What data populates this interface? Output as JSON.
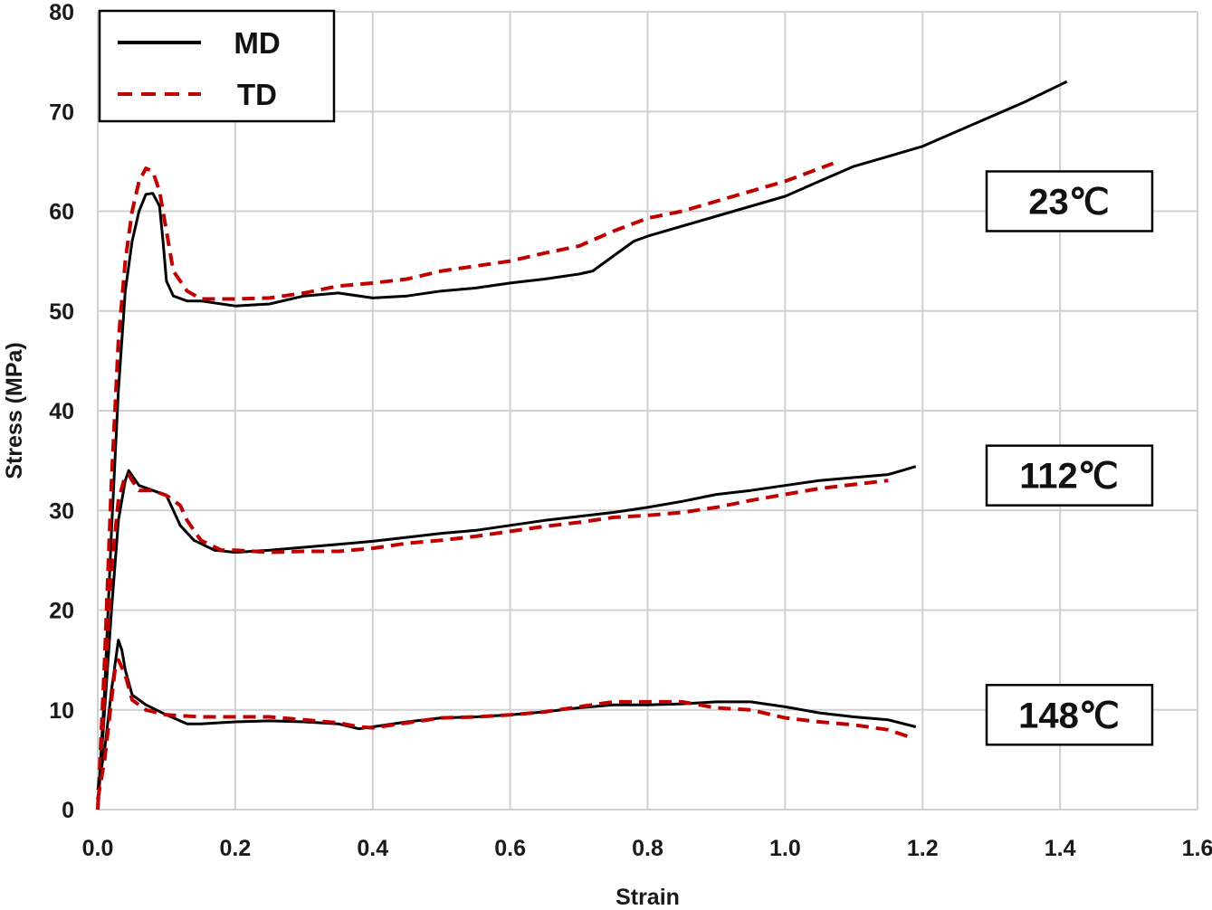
{
  "chart_data": {
    "type": "line",
    "title": "",
    "xlabel": "Strain",
    "ylabel": "Stress (MPa)",
    "xlim": [
      0,
      1.6
    ],
    "ylim": [
      0,
      80
    ],
    "x_ticks": [
      "0.0",
      "0.2",
      "0.4",
      "0.6",
      "0.8",
      "1.0",
      "1.2",
      "1.4",
      "1.6"
    ],
    "y_ticks": [
      "0",
      "10",
      "20",
      "30",
      "40",
      "50",
      "60",
      "70",
      "80"
    ],
    "grid": true,
    "legend": {
      "placement": "top-left",
      "entries": [
        {
          "label": "MD",
          "color": "#000000",
          "style": "solid"
        },
        {
          "label": "TD",
          "color": "#c00000",
          "style": "dashed"
        }
      ]
    },
    "annotations": [
      {
        "text": "23℃",
        "near_y": 61
      },
      {
        "text": "112℃",
        "near_y": 33.5
      },
      {
        "text": "148℃",
        "near_y": 9.5
      }
    ],
    "series": [
      {
        "name": "MD",
        "group": "23℃",
        "color": "#000000",
        "dash": false,
        "points": [
          [
            0.0,
            0
          ],
          [
            0.01,
            12
          ],
          [
            0.02,
            28
          ],
          [
            0.03,
            42
          ],
          [
            0.04,
            52
          ],
          [
            0.05,
            57
          ],
          [
            0.06,
            60
          ],
          [
            0.07,
            61.7
          ],
          [
            0.08,
            61.8
          ],
          [
            0.09,
            60.5
          ],
          [
            0.095,
            57
          ],
          [
            0.1,
            53
          ],
          [
            0.11,
            51.5
          ],
          [
            0.13,
            51
          ],
          [
            0.15,
            51
          ],
          [
            0.2,
            50.5
          ],
          [
            0.25,
            50.7
          ],
          [
            0.3,
            51.5
          ],
          [
            0.35,
            51.8
          ],
          [
            0.4,
            51.3
          ],
          [
            0.45,
            51.5
          ],
          [
            0.5,
            52
          ],
          [
            0.55,
            52.3
          ],
          [
            0.6,
            52.8
          ],
          [
            0.65,
            53.2
          ],
          [
            0.7,
            53.7
          ],
          [
            0.72,
            54
          ],
          [
            0.75,
            55.5
          ],
          [
            0.78,
            57
          ],
          [
            0.8,
            57.5
          ],
          [
            0.85,
            58.5
          ],
          [
            0.9,
            59.5
          ],
          [
            0.95,
            60.5
          ],
          [
            1.0,
            61.5
          ],
          [
            1.05,
            63
          ],
          [
            1.1,
            64.5
          ],
          [
            1.15,
            65.5
          ],
          [
            1.2,
            66.5
          ],
          [
            1.25,
            68
          ],
          [
            1.3,
            69.5
          ],
          [
            1.35,
            71
          ],
          [
            1.41,
            73
          ]
        ]
      },
      {
        "name": "TD",
        "group": "23℃",
        "color": "#c00000",
        "dash": true,
        "points": [
          [
            0.0,
            0
          ],
          [
            0.01,
            15
          ],
          [
            0.02,
            33
          ],
          [
            0.03,
            47
          ],
          [
            0.04,
            55
          ],
          [
            0.05,
            60
          ],
          [
            0.06,
            63
          ],
          [
            0.07,
            64.3
          ],
          [
            0.08,
            64
          ],
          [
            0.09,
            62
          ],
          [
            0.1,
            58
          ],
          [
            0.11,
            54
          ],
          [
            0.13,
            52
          ],
          [
            0.15,
            51.2
          ],
          [
            0.2,
            51.2
          ],
          [
            0.25,
            51.3
          ],
          [
            0.3,
            51.8
          ],
          [
            0.35,
            52.5
          ],
          [
            0.4,
            52.8
          ],
          [
            0.45,
            53.2
          ],
          [
            0.5,
            54
          ],
          [
            0.55,
            54.5
          ],
          [
            0.6,
            55
          ],
          [
            0.65,
            55.8
          ],
          [
            0.7,
            56.5
          ],
          [
            0.75,
            58
          ],
          [
            0.8,
            59.3
          ],
          [
            0.85,
            60
          ],
          [
            0.9,
            61
          ],
          [
            0.95,
            62
          ],
          [
            1.0,
            63
          ],
          [
            1.07,
            64.8
          ]
        ]
      },
      {
        "name": "MD",
        "group": "112℃",
        "color": "#000000",
        "dash": false,
        "points": [
          [
            0.0,
            0
          ],
          [
            0.01,
            10
          ],
          [
            0.02,
            20
          ],
          [
            0.03,
            29
          ],
          [
            0.04,
            33
          ],
          [
            0.045,
            34
          ],
          [
            0.05,
            33.5
          ],
          [
            0.06,
            32.5
          ],
          [
            0.08,
            32
          ],
          [
            0.1,
            31.5
          ],
          [
            0.11,
            30
          ],
          [
            0.12,
            28.5
          ],
          [
            0.14,
            27
          ],
          [
            0.17,
            26
          ],
          [
            0.2,
            25.8
          ],
          [
            0.25,
            26
          ],
          [
            0.3,
            26.3
          ],
          [
            0.35,
            26.6
          ],
          [
            0.4,
            26.9
          ],
          [
            0.45,
            27.3
          ],
          [
            0.5,
            27.7
          ],
          [
            0.55,
            28
          ],
          [
            0.6,
            28.5
          ],
          [
            0.65,
            29
          ],
          [
            0.7,
            29.4
          ],
          [
            0.75,
            29.8
          ],
          [
            0.8,
            30.3
          ],
          [
            0.85,
            30.9
          ],
          [
            0.9,
            31.6
          ],
          [
            0.95,
            32
          ],
          [
            1.0,
            32.5
          ],
          [
            1.05,
            33
          ],
          [
            1.1,
            33.3
          ],
          [
            1.15,
            33.6
          ],
          [
            1.17,
            34
          ],
          [
            1.19,
            34.4
          ]
        ]
      },
      {
        "name": "TD",
        "group": "112℃",
        "color": "#c00000",
        "dash": true,
        "points": [
          [
            0.0,
            0
          ],
          [
            0.01,
            12
          ],
          [
            0.02,
            24
          ],
          [
            0.03,
            31
          ],
          [
            0.04,
            33.5
          ],
          [
            0.045,
            33.6
          ],
          [
            0.05,
            33
          ],
          [
            0.06,
            32
          ],
          [
            0.08,
            32
          ],
          [
            0.1,
            31.5
          ],
          [
            0.12,
            30.5
          ],
          [
            0.13,
            29
          ],
          [
            0.15,
            27
          ],
          [
            0.18,
            26
          ],
          [
            0.2,
            26
          ],
          [
            0.25,
            25.8
          ],
          [
            0.3,
            25.9
          ],
          [
            0.35,
            25.9
          ],
          [
            0.4,
            26.2
          ],
          [
            0.45,
            26.7
          ],
          [
            0.5,
            27
          ],
          [
            0.55,
            27.4
          ],
          [
            0.6,
            27.9
          ],
          [
            0.65,
            28.4
          ],
          [
            0.7,
            28.8
          ],
          [
            0.75,
            29.3
          ],
          [
            0.8,
            29.5
          ],
          [
            0.85,
            29.8
          ],
          [
            0.9,
            30.3
          ],
          [
            0.95,
            31
          ],
          [
            1.0,
            31.6
          ],
          [
            1.05,
            32.2
          ],
          [
            1.1,
            32.6
          ],
          [
            1.15,
            33
          ]
        ]
      },
      {
        "name": "MD",
        "group": "148℃",
        "color": "#000000",
        "dash": false,
        "points": [
          [
            0.0,
            2
          ],
          [
            0.01,
            6
          ],
          [
            0.02,
            12
          ],
          [
            0.03,
            17
          ],
          [
            0.035,
            16
          ],
          [
            0.04,
            14
          ],
          [
            0.05,
            11.5
          ],
          [
            0.07,
            10.5
          ],
          [
            0.1,
            9.5
          ],
          [
            0.13,
            8.6
          ],
          [
            0.15,
            8.6
          ],
          [
            0.2,
            8.8
          ],
          [
            0.25,
            8.9
          ],
          [
            0.3,
            8.8
          ],
          [
            0.35,
            8.6
          ],
          [
            0.38,
            8.1
          ],
          [
            0.4,
            8.3
          ],
          [
            0.45,
            8.8
          ],
          [
            0.5,
            9.2
          ],
          [
            0.55,
            9.3
          ],
          [
            0.6,
            9.5
          ],
          [
            0.65,
            9.8
          ],
          [
            0.7,
            10.2
          ],
          [
            0.75,
            10.5
          ],
          [
            0.8,
            10.5
          ],
          [
            0.85,
            10.6
          ],
          [
            0.9,
            10.8
          ],
          [
            0.95,
            10.8
          ],
          [
            1.0,
            10.3
          ],
          [
            1.05,
            9.7
          ],
          [
            1.1,
            9.3
          ],
          [
            1.15,
            9
          ],
          [
            1.19,
            8.3
          ]
        ]
      },
      {
        "name": "TD",
        "group": "148℃",
        "color": "#c00000",
        "dash": true,
        "points": [
          [
            0.0,
            1
          ],
          [
            0.01,
            5
          ],
          [
            0.02,
            11
          ],
          [
            0.025,
            14
          ],
          [
            0.03,
            15
          ],
          [
            0.04,
            13.5
          ],
          [
            0.05,
            11
          ],
          [
            0.07,
            10
          ],
          [
            0.1,
            9.5
          ],
          [
            0.15,
            9.3
          ],
          [
            0.2,
            9.3
          ],
          [
            0.25,
            9.3
          ],
          [
            0.3,
            9
          ],
          [
            0.35,
            8.7
          ],
          [
            0.38,
            8.3
          ],
          [
            0.4,
            8.2
          ],
          [
            0.45,
            8.7
          ],
          [
            0.5,
            9.2
          ],
          [
            0.55,
            9.3
          ],
          [
            0.6,
            9.5
          ],
          [
            0.65,
            9.8
          ],
          [
            0.7,
            10.3
          ],
          [
            0.75,
            10.8
          ],
          [
            0.8,
            10.8
          ],
          [
            0.85,
            10.8
          ],
          [
            0.9,
            10.2
          ],
          [
            0.95,
            10
          ],
          [
            1.0,
            9.2
          ],
          [
            1.05,
            8.8
          ],
          [
            1.1,
            8.5
          ],
          [
            1.15,
            8
          ],
          [
            1.18,
            7.3
          ]
        ]
      }
    ]
  }
}
